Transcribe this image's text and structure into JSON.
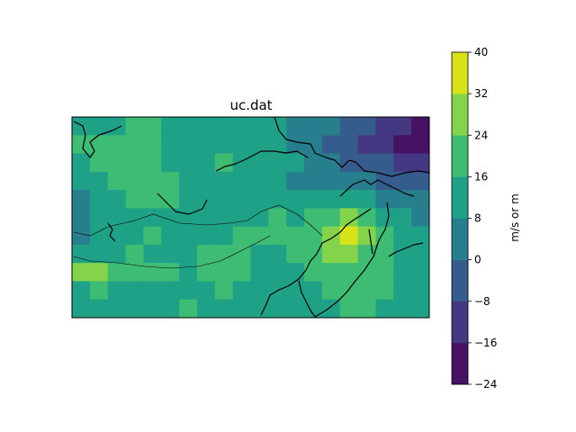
{
  "chart_data": {
    "type": "heatmap",
    "title": "uc.dat",
    "colorbar": {
      "label": "m/s or m",
      "levels": [
        -24,
        -16,
        -8,
        0,
        8,
        16,
        24,
        32,
        40
      ],
      "tick_labels": [
        "−24",
        "−16",
        "−8",
        "0",
        "8",
        "16",
        "24",
        "32",
        "40"
      ],
      "colors": [
        "#471164",
        "#453882",
        "#365c8d",
        "#277f8e",
        "#1fa187",
        "#3fbc73",
        "#84d44b",
        "#d8e219"
      ]
    },
    "grid_values": [
      [
        10,
        12,
        14,
        16,
        18,
        12,
        10,
        12,
        14,
        12,
        10,
        8,
        6,
        4,
        0,
        -4,
        -8,
        -12,
        -16,
        -20
      ],
      [
        16,
        22,
        18,
        20,
        16,
        14,
        12,
        10,
        12,
        14,
        12,
        10,
        4,
        0,
        -4,
        -8,
        -10,
        -14,
        -18,
        -20
      ],
      [
        12,
        16,
        20,
        18,
        16,
        14,
        12,
        14,
        16,
        14,
        12,
        10,
        8,
        4,
        0,
        -4,
        -6,
        -8,
        -10,
        -14
      ],
      [
        8,
        12,
        16,
        18,
        20,
        16,
        14,
        12,
        10,
        12,
        10,
        8,
        6,
        4,
        2,
        2,
        0,
        -2,
        -4,
        -6
      ],
      [
        6,
        10,
        14,
        16,
        18,
        16,
        14,
        10,
        8,
        10,
        10,
        12,
        10,
        12,
        14,
        10,
        8,
        6,
        4,
        2
      ],
      [
        0,
        8,
        10,
        12,
        14,
        12,
        10,
        8,
        10,
        12,
        14,
        16,
        14,
        18,
        22,
        24,
        20,
        14,
        10,
        6
      ],
      [
        4,
        10,
        12,
        14,
        16,
        14,
        12,
        10,
        14,
        16,
        16,
        16,
        18,
        22,
        28,
        33,
        26,
        18,
        12,
        8
      ],
      [
        10,
        12,
        14,
        16,
        14,
        12,
        14,
        16,
        18,
        16,
        14,
        14,
        16,
        20,
        26,
        28,
        22,
        16,
        12,
        10
      ],
      [
        24,
        26,
        22,
        20,
        18,
        16,
        14,
        18,
        20,
        18,
        14,
        12,
        12,
        16,
        18,
        20,
        22,
        18,
        14,
        12
      ],
      [
        14,
        16,
        14,
        12,
        10,
        10,
        12,
        14,
        16,
        14,
        12,
        10,
        10,
        14,
        16,
        18,
        20,
        16,
        12,
        10
      ],
      [
        10,
        12,
        10,
        8,
        12,
        14,
        16,
        12,
        10,
        12,
        14,
        12,
        10,
        12,
        14,
        16,
        18,
        14,
        12,
        10
      ]
    ],
    "grid_extent": {
      "lon": [
        -20,
        180
      ],
      "lat": [
        0,
        90
      ]
    },
    "overlay": "coastlines"
  }
}
